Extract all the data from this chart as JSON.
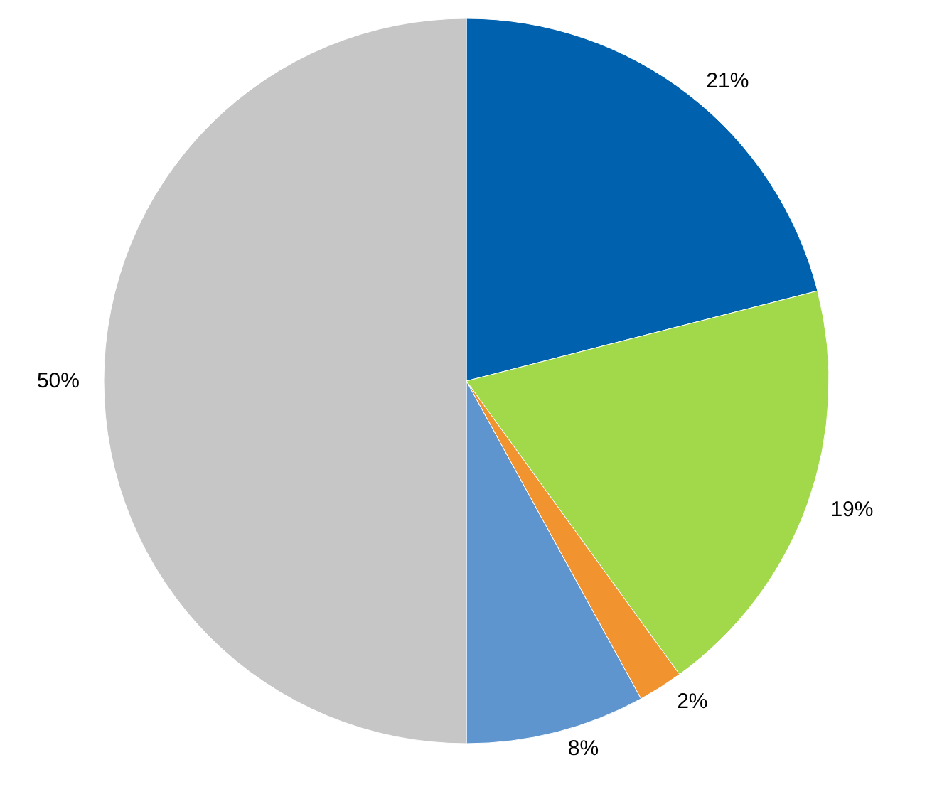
{
  "chart_data": {
    "type": "pie",
    "categories": [
      null,
      null,
      null,
      null,
      null
    ],
    "values": [
      21,
      19,
      2,
      8,
      50
    ],
    "colors": [
      "#0062ae",
      "#a2d94a",
      "#f1932f",
      "#5f95cf",
      "#c6c6c6"
    ],
    "value_labels": [
      "21%",
      "19%",
      "2%",
      "8%",
      "50%"
    ]
  }
}
